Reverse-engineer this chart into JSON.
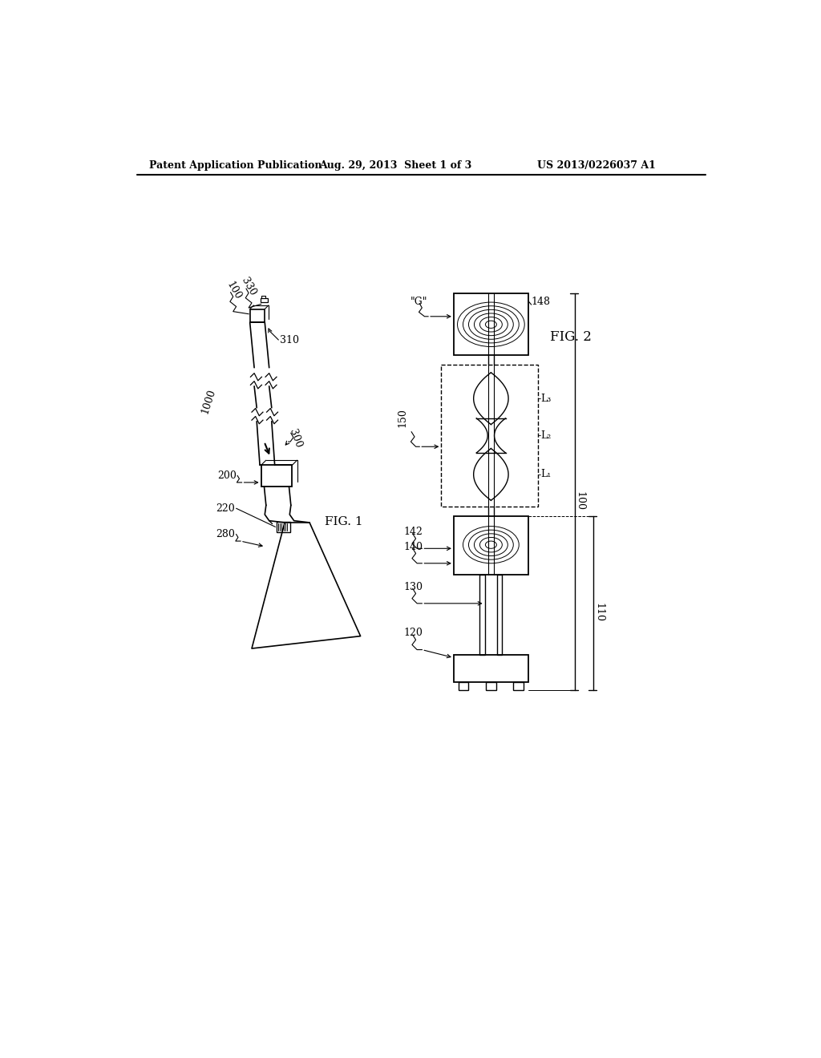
{
  "title_left": "Patent Application Publication",
  "title_center": "Aug. 29, 2013  Sheet 1 of 3",
  "title_right": "US 2013/0226037 A1",
  "fig1_label": "FIG. 1",
  "fig2_label": "FIG. 2",
  "background": "#ffffff",
  "line_color": "#000000",
  "fig_width": 10.24,
  "fig_height": 13.2,
  "dpi": 100
}
